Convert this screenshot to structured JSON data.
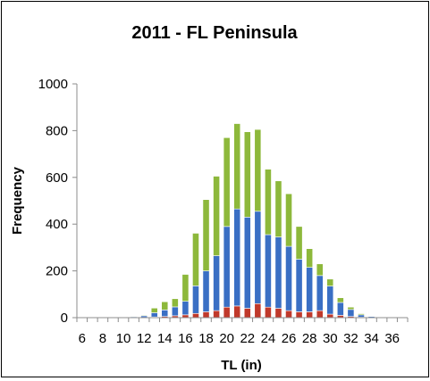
{
  "chart_data": {
    "type": "bar",
    "stacked": true,
    "title": "2011 - FL Peninsula",
    "xlabel": "TL (in)",
    "ylabel": "Frequency",
    "ylim": [
      0,
      1000
    ],
    "yticks": [
      "0",
      "200",
      "400",
      "600",
      "800",
      "1000"
    ],
    "categories": [
      "6",
      "7",
      "8",
      "9",
      "10",
      "11",
      "12",
      "13",
      "14",
      "15",
      "16",
      "17",
      "18",
      "19",
      "20",
      "21",
      "22",
      "23",
      "24",
      "25",
      "26",
      "27",
      "28",
      "29",
      "30",
      "31",
      "32",
      "33",
      "34",
      "35",
      "36",
      "37"
    ],
    "xtick_labels": [
      "6",
      "8",
      "10",
      "12",
      "14",
      "16",
      "18",
      "20",
      "22",
      "24",
      "26",
      "28",
      "30",
      "32",
      "34",
      "36"
    ],
    "grid": false,
    "legend": "none",
    "series": [
      {
        "color": "#c0392b",
        "values": [
          0,
          0,
          0,
          0,
          0,
          0,
          1,
          3,
          5,
          8,
          12,
          18,
          25,
          30,
          45,
          50,
          40,
          60,
          45,
          40,
          30,
          25,
          25,
          30,
          15,
          10,
          5,
          2,
          1,
          0,
          0,
          0
        ]
      },
      {
        "color": "#3a6fc4",
        "values": [
          0,
          0,
          0,
          0,
          2,
          4,
          7,
          18,
          28,
          38,
          58,
          118,
          175,
          235,
          345,
          415,
          390,
          395,
          310,
          305,
          275,
          225,
          190,
          150,
          120,
          55,
          30,
          10,
          4,
          2,
          1,
          0
        ]
      },
      {
        "color": "#8db83b",
        "values": [
          0,
          0,
          0,
          0,
          1,
          2,
          3,
          20,
          35,
          35,
          115,
          225,
          305,
          340,
          380,
          365,
          365,
          350,
          280,
          240,
          225,
          140,
          80,
          50,
          30,
          20,
          10,
          5,
          2,
          1,
          0,
          0
        ]
      }
    ]
  }
}
